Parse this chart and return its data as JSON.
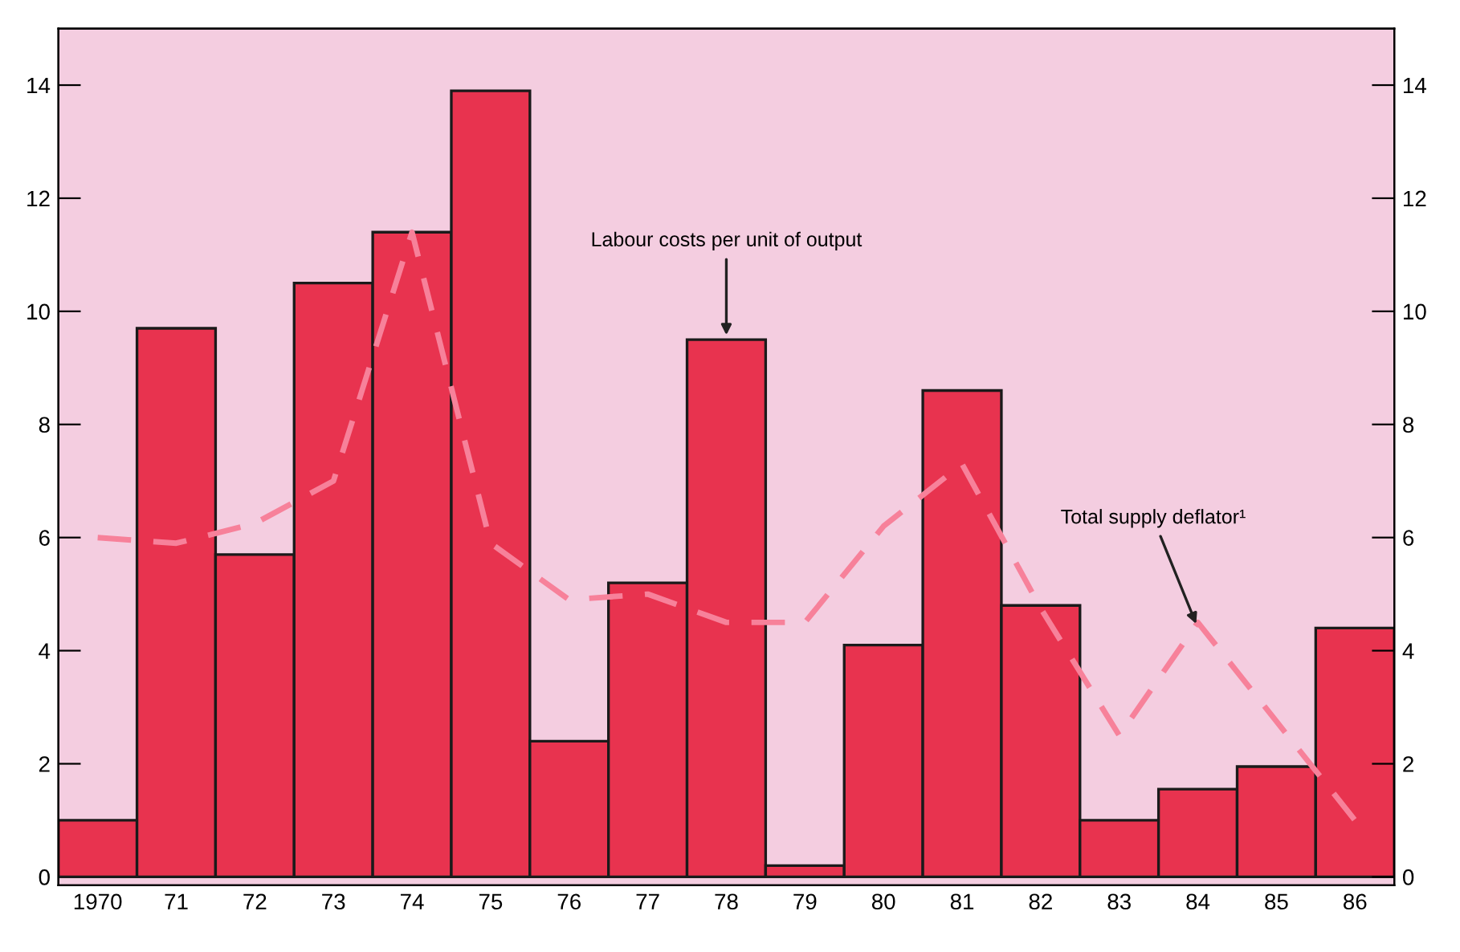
{
  "chart_data": {
    "type": "bar",
    "categories": [
      "1970",
      "71",
      "72",
      "73",
      "74",
      "75",
      "76",
      "77",
      "78",
      "79",
      "80",
      "81",
      "82",
      "83",
      "84",
      "85",
      "86"
    ],
    "series": [
      {
        "color": "#e8334f",
        "values": [
          1.0,
          9.7,
          5.7,
          10.5,
          11.4,
          13.9,
          2.4,
          5.2,
          9.5,
          0.2,
          4.1,
          8.6,
          4.8,
          1.0,
          1.55,
          1.95,
          4.4
        ]
      },
      {
        "type": "line",
        "color": "#f7819a",
        "line_style": "dashed",
        "values": [
          6.0,
          5.9,
          6.25,
          7.0,
          11.4,
          5.9,
          4.9,
          5.0,
          4.5,
          4.5,
          6.2,
          7.3,
          4.75,
          2.5,
          4.5,
          2.75,
          1.0
        ]
      }
    ],
    "ylim": [
      -0.15,
      15
    ],
    "yticks": [
      0,
      2,
      4,
      6,
      8,
      10,
      12,
      14
    ],
    "y2lim": [
      -0.15,
      15
    ],
    "y2ticks": [
      0,
      2,
      4,
      6,
      8,
      10,
      12,
      14
    ],
    "annotations": [
      {
        "text": "Labour costs per unit of output",
        "x": "78",
        "y": 9.5
      },
      {
        "text": "Total supply deflator¹",
        "x": "84",
        "y": 4.4
      }
    ],
    "grid": false,
    "legend": false
  }
}
